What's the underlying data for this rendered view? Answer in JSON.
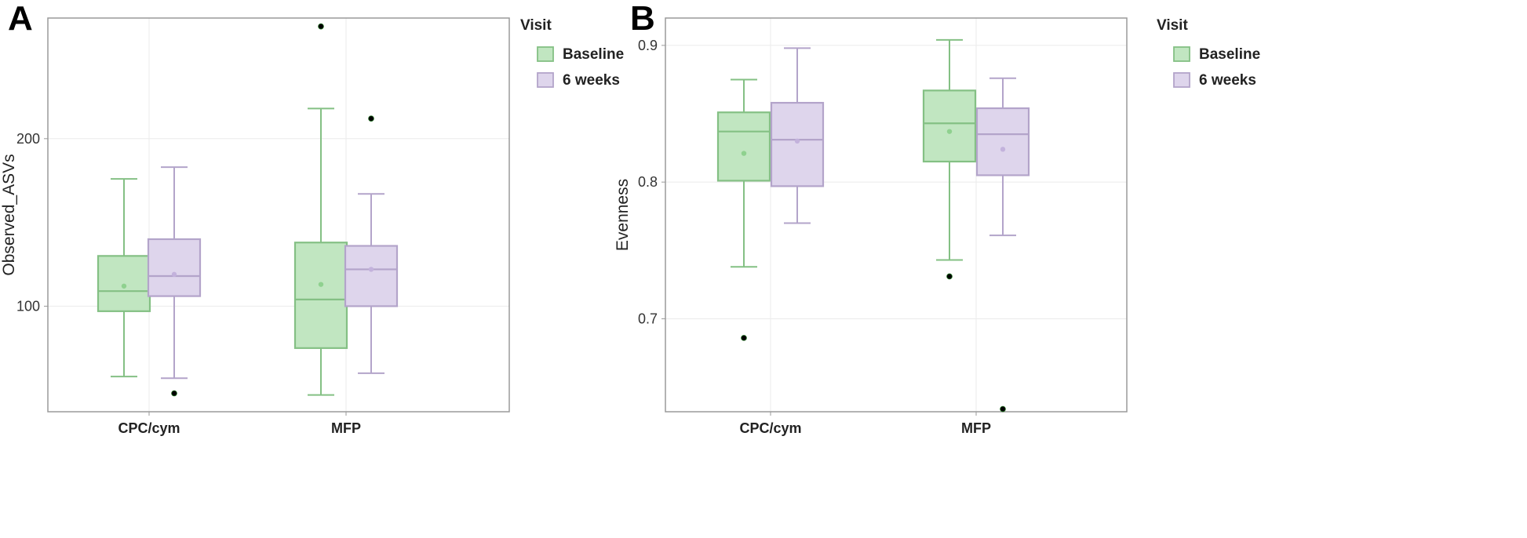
{
  "chart_data": [
    {
      "type": "box",
      "panel_label": "A",
      "ylabel": "Observed_ASVs",
      "categories": [
        "CPC/cym",
        "MFP"
      ],
      "yticks": [
        100,
        200
      ],
      "ylim": [
        37,
        272
      ],
      "grid": true,
      "legend_title": "Visit",
      "series": [
        {
          "name": "Baseline",
          "color": "#8fd18f",
          "boxes": [
            {
              "category": "CPC/cym",
              "whisker_low": 58,
              "q1": 97,
              "median": 109,
              "q3": 130,
              "whisker_high": 176,
              "mean": 112,
              "outliers": []
            },
            {
              "category": "MFP",
              "whisker_low": 47,
              "q1": 75,
              "median": 104,
              "q3": 138,
              "whisker_high": 218,
              "mean": 113,
              "outliers": [
                267
              ]
            }
          ]
        },
        {
          "name": "6 weeks",
          "color": "#c3b2dc",
          "boxes": [
            {
              "category": "CPC/cym",
              "whisker_low": 57,
              "q1": 106,
              "median": 118,
              "q3": 140,
              "whisker_high": 183,
              "mean": 119,
              "outliers": [
                48
              ]
            },
            {
              "category": "MFP",
              "whisker_low": 60,
              "q1": 100,
              "median": 122,
              "q3": 136,
              "whisker_high": 167,
              "mean": 122,
              "outliers": [
                212
              ]
            }
          ]
        }
      ]
    },
    {
      "type": "box",
      "panel_label": "B",
      "ylabel": "Evenness",
      "categories": [
        "CPC/cym",
        "MFP"
      ],
      "yticks": [
        0.7,
        0.8,
        0.9
      ],
      "ylim": [
        0.632,
        0.92
      ],
      "grid": true,
      "legend_title": "Visit",
      "series": [
        {
          "name": "Baseline",
          "color": "#8fd18f",
          "boxes": [
            {
              "category": "CPC/cym",
              "whisker_low": 0.738,
              "q1": 0.801,
              "median": 0.837,
              "q3": 0.851,
              "whisker_high": 0.875,
              "mean": 0.821,
              "outliers": [
                0.686
              ]
            },
            {
              "category": "MFP",
              "whisker_low": 0.743,
              "q1": 0.815,
              "median": 0.843,
              "q3": 0.867,
              "whisker_high": 0.904,
              "mean": 0.837,
              "outliers": [
                0.731
              ]
            }
          ]
        },
        {
          "name": "6 weeks",
          "color": "#c3b2dc",
          "boxes": [
            {
              "category": "CPC/cym",
              "whisker_low": 0.77,
              "q1": 0.797,
              "median": 0.831,
              "q3": 0.858,
              "whisker_high": 0.898,
              "mean": 0.83,
              "outliers": []
            },
            {
              "category": "MFP",
              "whisker_low": 0.761,
              "q1": 0.805,
              "median": 0.835,
              "q3": 0.854,
              "whisker_high": 0.876,
              "mean": 0.824,
              "outliers": [
                0.634
              ]
            }
          ]
        }
      ]
    }
  ]
}
